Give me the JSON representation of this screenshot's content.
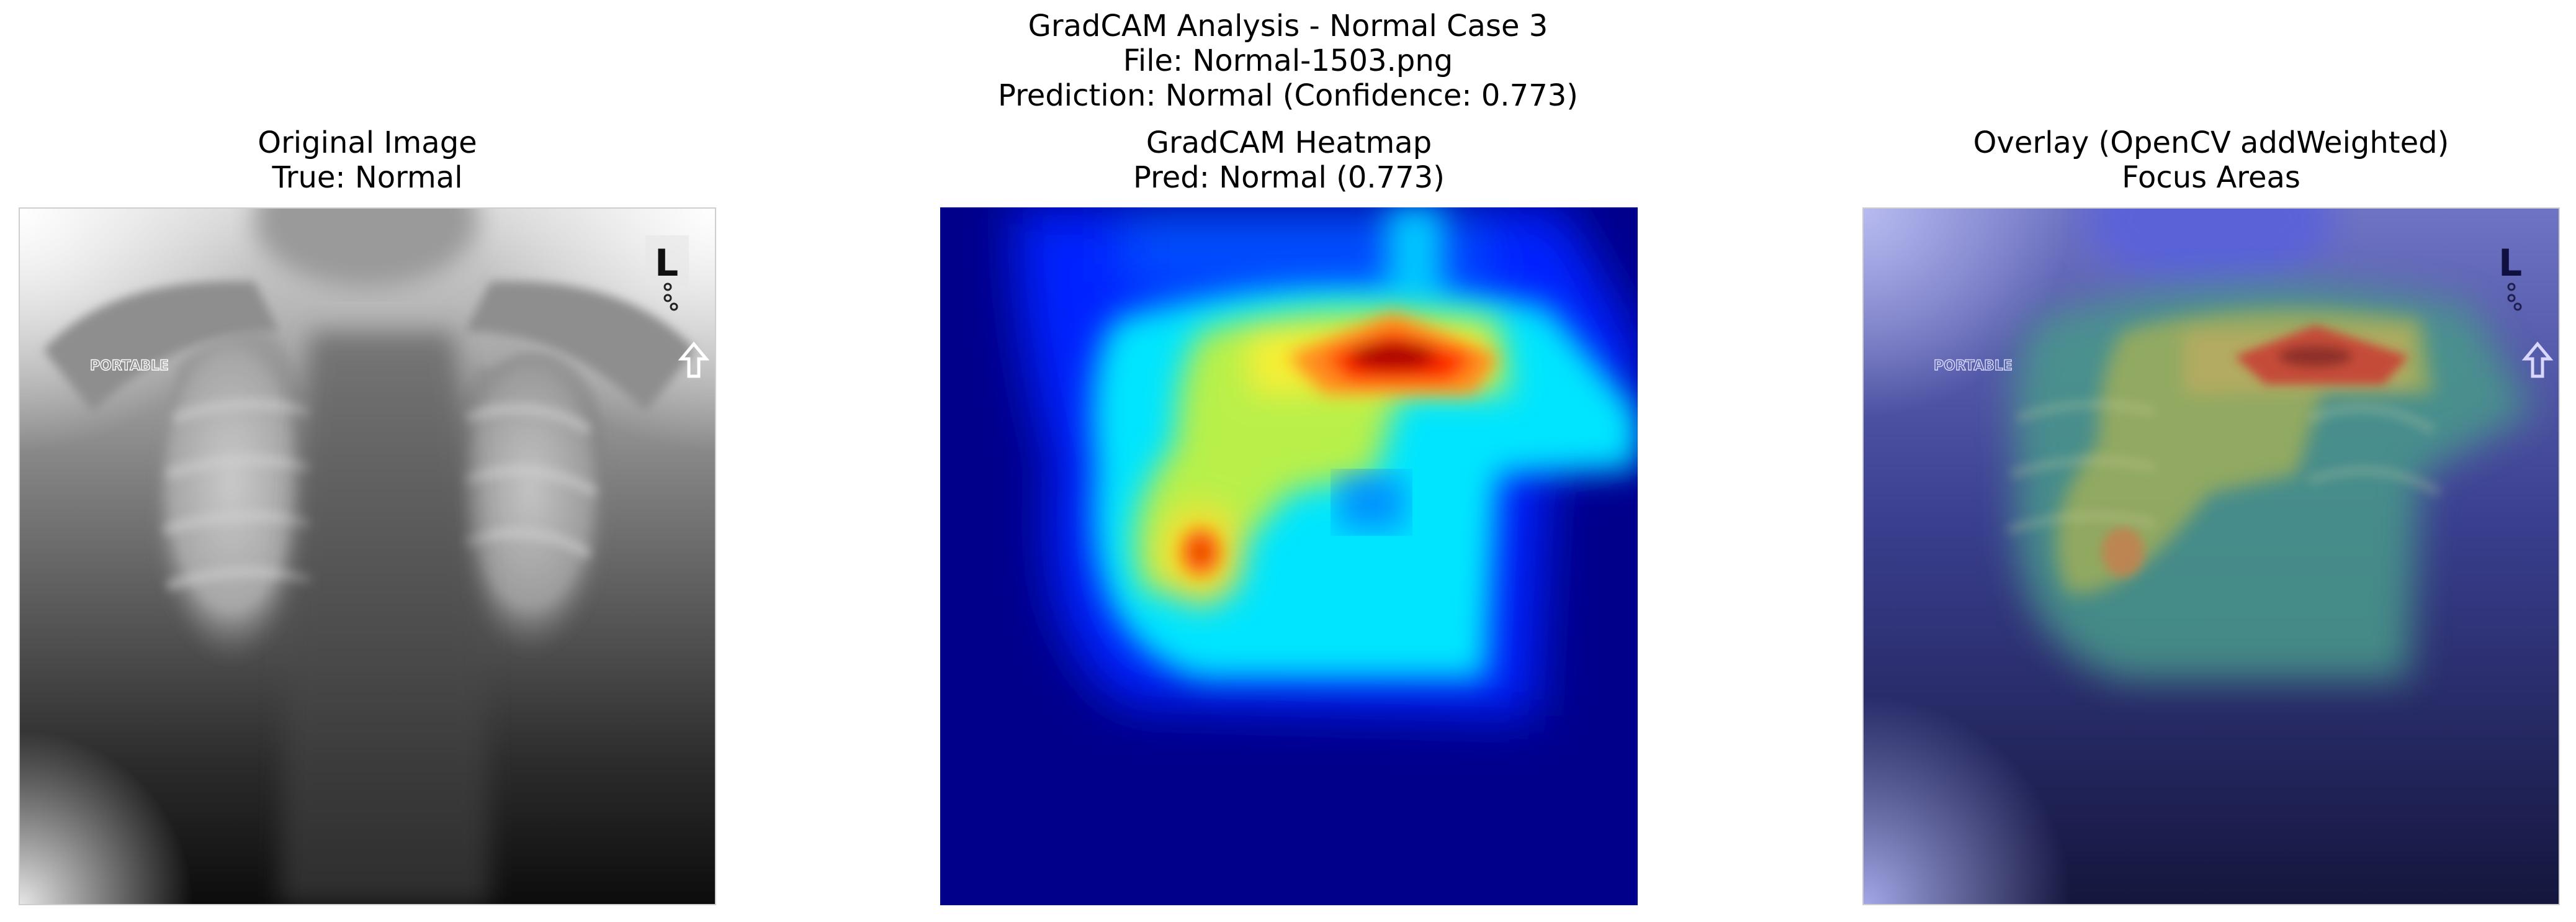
{
  "figure": {
    "title_lines": [
      "GradCAM Analysis - Normal Case 3",
      "File: Normal-1503.png",
      "Prediction: Normal (Confidence: 0.773)"
    ]
  },
  "panels": [
    {
      "title_line1": "Original Image",
      "title_line2": "True: Normal",
      "image": "grayscale chest x-ray",
      "marker_text": "PORTABLE",
      "side_marker": "L"
    },
    {
      "title_line1": "GradCAM Heatmap",
      "title_line2": "Pred: Normal (0.773)",
      "image": "jet colormap heatmap"
    },
    {
      "title_line1": "Overlay (OpenCV addWeighted)",
      "title_line2": "Focus Areas",
      "image": "x-ray with heatmap overlay",
      "marker_text": "PORTABLE",
      "side_marker": "L"
    }
  ],
  "colors": {
    "heat_low": "#00008b",
    "heat_mid": "#00e5ff",
    "heat_yellow": "#f5f032",
    "heat_high": "#c00000"
  }
}
